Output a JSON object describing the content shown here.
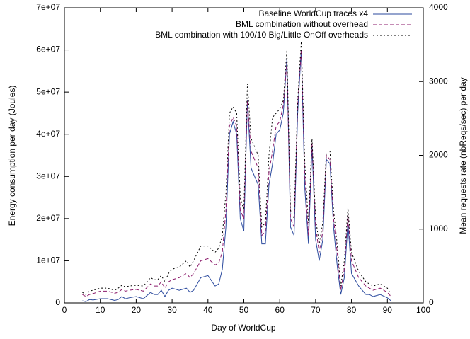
{
  "chart_data": {
    "type": "line",
    "xlabel": "Day of WorldCup",
    "ylabel": "Energy consumption per day (Joules)",
    "y2label": "Mean requests rate (nbReqs/sec) per day",
    "xlim": [
      0,
      100
    ],
    "xticks": [
      0,
      10,
      20,
      30,
      40,
      50,
      60,
      70,
      80,
      90,
      100
    ],
    "ylim": [
      0,
      70000000
    ],
    "yticks": [
      {
        "value": 0,
        "label": "0"
      },
      {
        "value": 10000000,
        "label": "1e+07"
      },
      {
        "value": 20000000,
        "label": "2e+07"
      },
      {
        "value": 30000000,
        "label": "3e+07"
      },
      {
        "value": 40000000,
        "label": "4e+07"
      },
      {
        "value": 50000000,
        "label": "5e+07"
      },
      {
        "value": 60000000,
        "label": "6e+07"
      },
      {
        "value": 70000000,
        "label": "7e+07"
      }
    ],
    "y2lim": [
      0,
      4000
    ],
    "y2ticks": [
      0,
      1000,
      2000,
      3000,
      4000
    ],
    "legend": "top-right",
    "x": [
      5,
      6,
      7,
      8,
      10,
      12,
      14,
      15,
      16,
      17,
      18,
      20,
      22,
      24,
      25,
      26,
      27,
      28,
      29,
      30,
      32,
      34,
      35,
      36,
      38,
      40,
      42,
      43,
      44,
      45,
      46,
      47,
      48,
      49,
      50,
      51,
      52,
      53,
      54,
      55,
      56,
      57,
      58,
      59,
      60,
      61,
      62,
      63,
      64,
      65,
      66,
      67,
      68,
      69,
      70,
      71,
      72,
      73,
      74,
      75,
      76,
      77,
      78,
      79,
      80,
      82,
      84,
      85,
      86,
      88,
      90,
      91
    ],
    "series": [
      {
        "name": "Baseline WorldCup traces x4",
        "color": "#2b4a9e",
        "axis": "y2",
        "dash": "solid",
        "values": [
          29,
          17,
          46,
          40,
          57,
          57,
          34,
          46,
          86,
          57,
          69,
          86,
          57,
          143,
          114,
          114,
          171,
          86,
          171,
          200,
          171,
          200,
          143,
          171,
          343,
          371,
          229,
          257,
          457,
          1029,
          2286,
          2457,
          2286,
          1143,
          971,
          2743,
          1829,
          1714,
          1600,
          800,
          800,
          1600,
          1886,
          2286,
          2343,
          2571,
          3314,
          1029,
          914,
          2571,
          3429,
          1543,
          800,
          2114,
          857,
          571,
          857,
          1943,
          1886,
          1029,
          514,
          114,
          343,
          1086,
          400,
          229,
          114,
          114,
          86,
          114,
          69,
          29
        ]
      },
      {
        "name": "BML combination without overhead",
        "color": "#8b1a6b",
        "dash": "dashed",
        "values": [
          2000000.0,
          1500000.0,
          2000000.0,
          2200000.0,
          2800000.0,
          2800000.0,
          2300000.0,
          2500000.0,
          3200000.0,
          2800000.0,
          3000000.0,
          3200000.0,
          2800000.0,
          4500000.0,
          4000000.0,
          4000000.0,
          5000000.0,
          3500000.0,
          5000000.0,
          5500000.0,
          6000000.0,
          7000000.0,
          6000000.0,
          7000000.0,
          10000000.0,
          10500000.0,
          9000000.0,
          9500000.0,
          12000000.0,
          22000000.0,
          42000000.0,
          44000000.0,
          42000000.0,
          22000000.0,
          20000000.0,
          48000000.0,
          36000000.0,
          34000000.0,
          32000000.0,
          16000000.0,
          17000000.0,
          31000000.0,
          36000000.0,
          42000000.0,
          43000000.0,
          47000000.0,
          57000000.0,
          20000000.0,
          18000000.0,
          47000000.0,
          60000000.0,
          30000000.0,
          16000000.0,
          38000000.0,
          18000000.0,
          12000000.0,
          17000000.0,
          35000000.0,
          34000000.0,
          20000000.0,
          12000000.0,
          3000000.0,
          8000000.0,
          21000000.0,
          10000000.0,
          6000000.0,
          4000000.0,
          3500000.0,
          3000000.0,
          3500000.0,
          2500000.0,
          1500000.0
        ]
      },
      {
        "name": "BML combination with 100/10 Big/Little OnOff overheads",
        "color": "#000000",
        "dash": "dotted",
        "values": [
          2500000.0,
          2000000.0,
          2800000.0,
          3000000.0,
          3500000.0,
          3500000.0,
          3000000.0,
          3500000.0,
          4200000.0,
          3800000.0,
          4000000.0,
          4200000.0,
          4000000.0,
          6000000.0,
          5500000.0,
          5500000.0,
          6500000.0,
          5000000.0,
          7000000.0,
          8000000.0,
          8500000.0,
          10000000.0,
          8500000.0,
          10000000.0,
          13500000.0,
          13500000.0,
          12000000.0,
          13000000.0,
          16000000.0,
          26000000.0,
          45000000.0,
          46500000.0,
          45000000.0,
          25000000.0,
          22000000.0,
          52000000.0,
          39000000.0,
          37000000.0,
          35000000.0,
          18000000.0,
          19000000.0,
          35000000.0,
          44000000.0,
          45000000.0,
          46000000.0,
          48000000.0,
          60000000.0,
          22000000.0,
          20000000.0,
          48000000.0,
          62000000.0,
          33000000.0,
          19000000.0,
          39000000.0,
          20000000.0,
          14000000.0,
          19000000.0,
          36000000.0,
          36000000.0,
          22000000.0,
          14000000.0,
          4000000.0,
          10000000.0,
          22500000.0,
          12000000.0,
          7500000.0,
          5000000.0,
          4500000.0,
          4000000.0,
          4500000.0,
          3500000.0,
          2000000.0
        ]
      }
    ]
  }
}
